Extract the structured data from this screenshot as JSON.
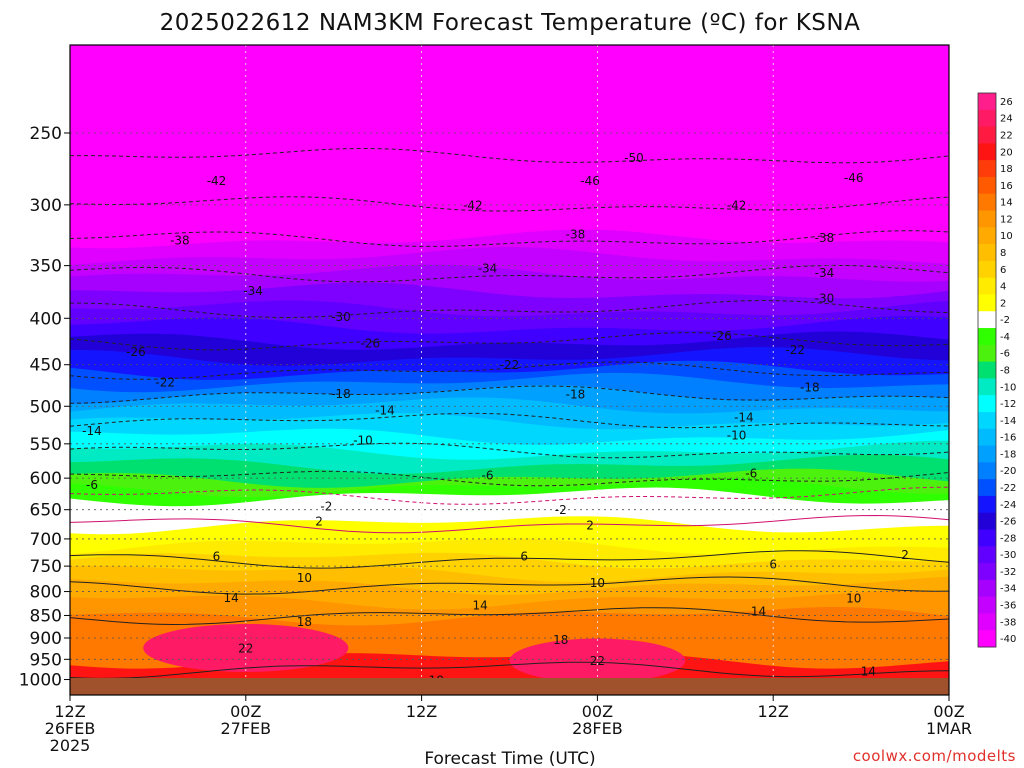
{
  "chart_data": {
    "type": "heatmap",
    "title": "2025022612 NAM3KM Forecast Temperature (ºC) for KSNA",
    "xlabel": "Forecast Time (UTC)",
    "ylabel": "",
    "y_scale": "log",
    "ylim": [
      1040,
      200
    ],
    "y_ticks": [
      250,
      300,
      350,
      400,
      450,
      500,
      550,
      600,
      650,
      700,
      750,
      800,
      850,
      900,
      950,
      1000
    ],
    "x_ticks": [
      {
        "hour": 0,
        "l1": "12Z",
        "l2": "26FEB",
        "l3": "2025"
      },
      {
        "hour": 12,
        "l1": "00Z",
        "l2": "27FEB",
        "l3": ""
      },
      {
        "hour": 24,
        "l1": "12Z",
        "l2": "",
        "l3": ""
      },
      {
        "hour": 36,
        "l1": "00Z",
        "l2": "28FEB",
        "l3": ""
      },
      {
        "hour": 48,
        "l1": "12Z",
        "l2": "",
        "l3": ""
      },
      {
        "hour": 60,
        "l1": "00Z",
        "l2": "1MAR",
        "l3": ""
      }
    ],
    "colorbar": {
      "labels": [
        "26",
        "24",
        "22",
        "20",
        "18",
        "16",
        "14",
        "12",
        "10",
        "8",
        "6",
        "4",
        "2",
        "-2",
        "-4",
        "-6",
        "-8",
        "-10",
        "-12",
        "-14",
        "-16",
        "-18",
        "-20",
        "-22",
        "-24",
        "-26",
        "-28",
        "-30",
        "-32",
        "-34",
        "-36",
        "-38",
        "-40"
      ],
      "colors": [
        "#ff1e8c",
        "#ff1a66",
        "#ff1a42",
        "#ff1414",
        "#ff3c0a",
        "#ff5a00",
        "#ff7800",
        "#ff9600",
        "#ffaa00",
        "#ffbe00",
        "#ffd200",
        "#ffeb00",
        "#ffff00",
        "#ffffff",
        "#30ff00",
        "#4cf20e",
        "#00e070",
        "#00ebc3",
        "#00ffff",
        "#00d7ff",
        "#00bcff",
        "#00a0ff",
        "#0080ff",
        "#0050ff",
        "#1414ff",
        "#2200d8",
        "#3f00ff",
        "#6200ff",
        "#7e00ff",
        "#a600ff",
        "#c400ff",
        "#e000ff",
        "#ff00ff"
      ]
    },
    "levels": [
      1000,
      950,
      900,
      850,
      800,
      750,
      700,
      650,
      600,
      550,
      500,
      450,
      400,
      350,
      300,
      250
    ],
    "temperature_profile": [
      16,
      20,
      18,
      14,
      11,
      7,
      3,
      1,
      -6,
      -11,
      -16,
      -23,
      -29,
      -35,
      -42,
      -48
    ],
    "contour_labels": [
      {
        "t": "-50",
        "h": 38.5,
        "p": 266
      },
      {
        "t": "-46",
        "h": 35.5,
        "p": 282
      },
      {
        "t": "-46",
        "h": 53.5,
        "p": 280
      },
      {
        "t": "-42",
        "h": 10,
        "p": 282
      },
      {
        "t": "-42",
        "h": 27.5,
        "p": 300
      },
      {
        "t": "-42",
        "h": 45.5,
        "p": 300
      },
      {
        "t": "-38",
        "h": 7.5,
        "p": 328
      },
      {
        "t": "-38",
        "h": 34.5,
        "p": 323
      },
      {
        "t": "-38",
        "h": 51.5,
        "p": 326
      },
      {
        "t": "-34",
        "h": 12.5,
        "p": 373
      },
      {
        "t": "-34",
        "h": 28.5,
        "p": 352
      },
      {
        "t": "-34",
        "h": 51.5,
        "p": 356
      },
      {
        "t": "-30",
        "h": 18.5,
        "p": 398
      },
      {
        "t": "-30",
        "h": 51.5,
        "p": 380
      },
      {
        "t": "-26",
        "h": 4.5,
        "p": 435
      },
      {
        "t": "-26",
        "h": 20.5,
        "p": 426
      },
      {
        "t": "-26",
        "h": 44.5,
        "p": 418
      },
      {
        "t": "-22",
        "h": 6.5,
        "p": 470
      },
      {
        "t": "-22",
        "h": 30,
        "p": 450
      },
      {
        "t": "-22",
        "h": 49.5,
        "p": 433
      },
      {
        "t": "-18",
        "h": 18.5,
        "p": 484
      },
      {
        "t": "-18",
        "h": 34.5,
        "p": 485
      },
      {
        "t": "-18",
        "h": 50.5,
        "p": 476
      },
      {
        "t": "-14",
        "h": 1.5,
        "p": 532
      },
      {
        "t": "-14",
        "h": 21.5,
        "p": 505
      },
      {
        "t": "-14",
        "h": 46,
        "p": 514
      },
      {
        "t": "-10",
        "h": 20,
        "p": 545
      },
      {
        "t": "-10",
        "h": 45.5,
        "p": 538
      },
      {
        "t": "-6",
        "h": 1.5,
        "p": 610
      },
      {
        "t": "-6",
        "h": 28.5,
        "p": 595
      },
      {
        "t": "-6",
        "h": 46.5,
        "p": 592
      },
      {
        "t": "-2",
        "h": 17.5,
        "p": 644
      },
      {
        "t": "-2",
        "h": 33.5,
        "p": 650
      },
      {
        "t": "2",
        "h": 17,
        "p": 669
      },
      {
        "t": "2",
        "h": 35.5,
        "p": 676
      },
      {
        "t": "2",
        "h": 57,
        "p": 728
      },
      {
        "t": "6",
        "h": 10,
        "p": 731
      },
      {
        "t": "6",
        "h": 31,
        "p": 731
      },
      {
        "t": "6",
        "h": 48,
        "p": 746
      },
      {
        "t": "10",
        "h": 16,
        "p": 772
      },
      {
        "t": "10",
        "h": 36,
        "p": 782
      },
      {
        "t": "10",
        "h": 53.5,
        "p": 813
      },
      {
        "t": "14",
        "h": 11,
        "p": 812
      },
      {
        "t": "14",
        "h": 28,
        "p": 828
      },
      {
        "t": "14",
        "h": 47,
        "p": 840
      },
      {
        "t": "14",
        "h": 54.5,
        "p": 978
      },
      {
        "t": "18",
        "h": 16,
        "p": 863
      },
      {
        "t": "18",
        "h": 33.5,
        "p": 903
      },
      {
        "t": "18",
        "h": 25,
        "p": 1001
      },
      {
        "t": "22",
        "h": 12,
        "p": 923
      },
      {
        "t": "22",
        "h": 36,
        "p": 953
      }
    ],
    "credit": "coolwx.com/modelts"
  }
}
